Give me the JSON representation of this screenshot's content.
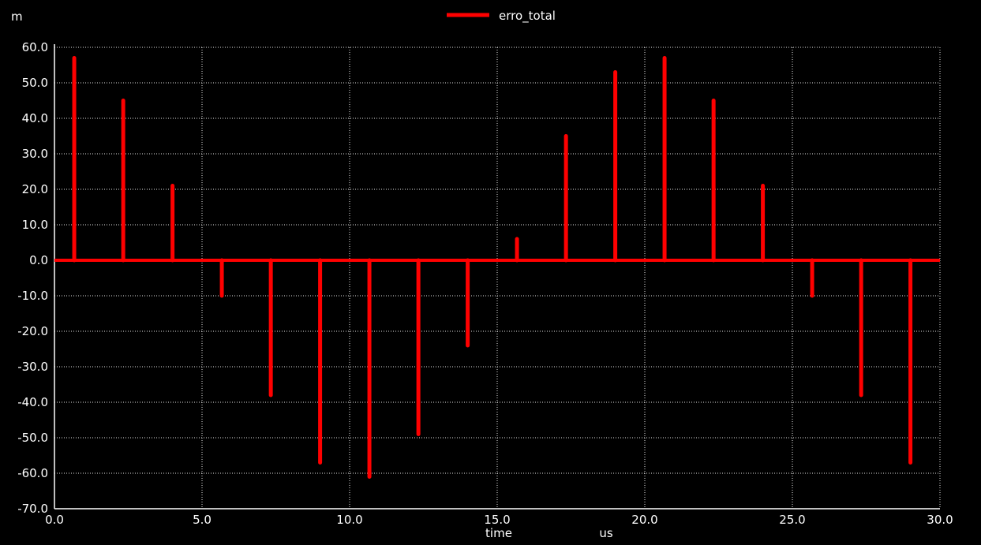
{
  "chart_data": {
    "type": "line",
    "title": "",
    "y_unit_label": "m",
    "xlabel": "time",
    "x_unit_label": "us",
    "xlim": [
      0,
      30
    ],
    "ylim": [
      -70,
      60
    ],
    "x_ticks": [
      "0.0",
      "5.0",
      "10.0",
      "15.0",
      "20.0",
      "25.0",
      "30.0"
    ],
    "y_ticks": [
      "60.0",
      "50.0",
      "40.0",
      "30.0",
      "20.0",
      "10.0",
      "0.0",
      "-10.0",
      "-20.0",
      "-30.0",
      "-40.0",
      "-50.0",
      "-60.0",
      "-70.0"
    ],
    "grid": true,
    "legend_position": "top-center",
    "series": [
      {
        "name": "erro_total",
        "color": "#ff0000",
        "baseline": 0,
        "spikes": [
          {
            "x": 0.67,
            "y": 57
          },
          {
            "x": 2.33,
            "y": 45
          },
          {
            "x": 4.0,
            "y": 21
          },
          {
            "x": 5.67,
            "y": -10
          },
          {
            "x": 7.33,
            "y": -38
          },
          {
            "x": 9.0,
            "y": -57
          },
          {
            "x": 10.67,
            "y": -61
          },
          {
            "x": 12.33,
            "y": -49
          },
          {
            "x": 14.0,
            "y": -24
          },
          {
            "x": 15.67,
            "y": 6
          },
          {
            "x": 17.33,
            "y": 35
          },
          {
            "x": 19.0,
            "y": 53
          },
          {
            "x": 20.67,
            "y": 57
          },
          {
            "x": 22.33,
            "y": 45
          },
          {
            "x": 24.0,
            "y": 21
          },
          {
            "x": 25.67,
            "y": -10
          },
          {
            "x": 27.33,
            "y": -38
          },
          {
            "x": 29.0,
            "y": -57
          }
        ]
      }
    ]
  }
}
